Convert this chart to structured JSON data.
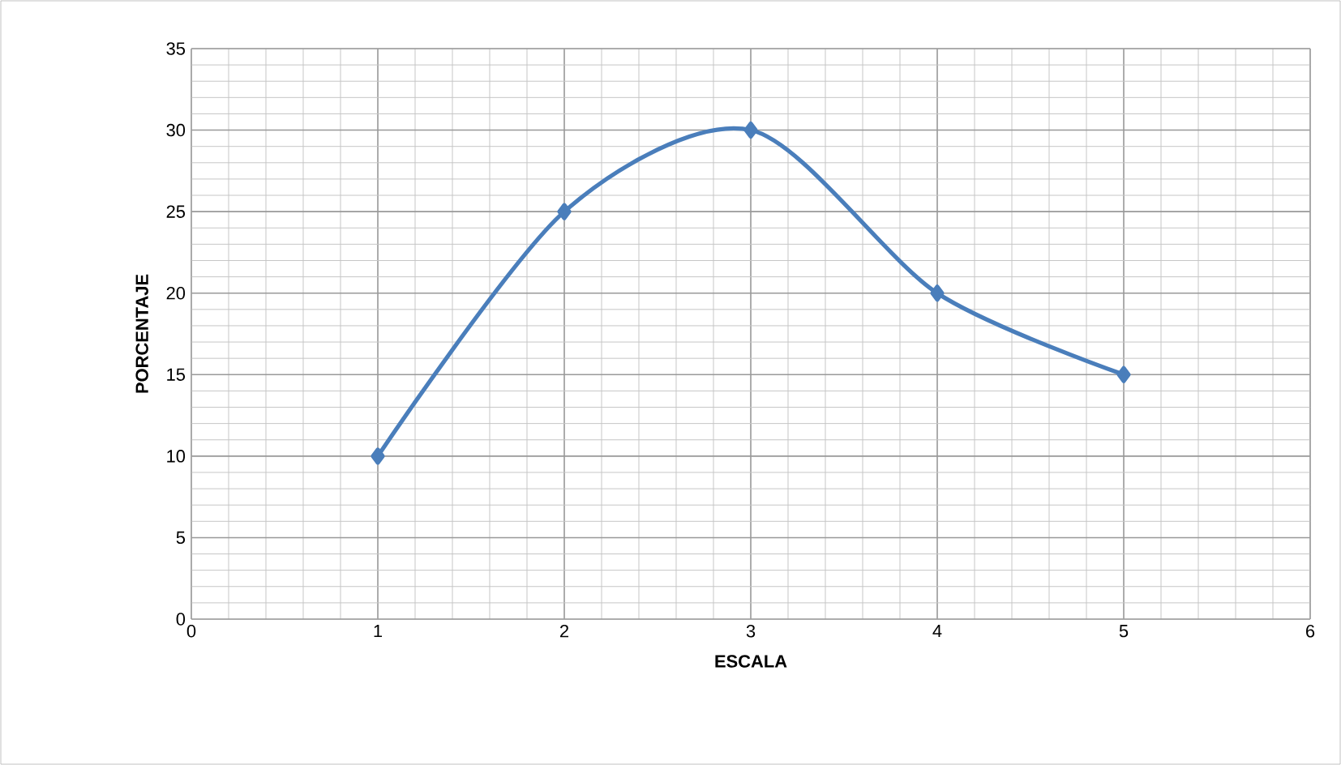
{
  "chart_data": {
    "type": "line",
    "xlabel": "ESCALA",
    "ylabel": "PORCENTAJE",
    "x": [
      1,
      2,
      3,
      4,
      5
    ],
    "series": [
      {
        "color": "#4a7ebb",
        "values": [
          10,
          25,
          30,
          20,
          15
        ]
      }
    ],
    "xlim": [
      0,
      6
    ],
    "xticks": [
      0,
      1,
      2,
      3,
      4,
      5,
      6
    ],
    "ylim": [
      0,
      35
    ],
    "yticks": [
      0,
      5,
      10,
      15,
      20,
      25,
      30,
      35
    ],
    "grid": true,
    "marker": "diamond",
    "line_style": "solid"
  }
}
